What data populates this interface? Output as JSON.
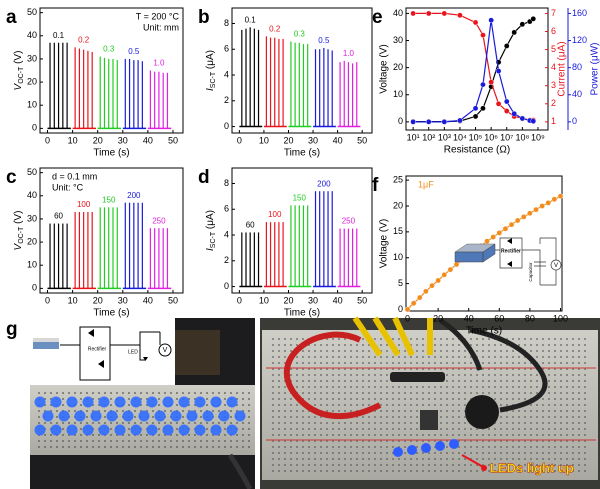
{
  "chart_data": [
    {
      "panel": "a",
      "type": "pulse",
      "ylabel": [
        "V",
        "OC-T",
        " (V)"
      ],
      "xlabel": "Time (s)",
      "xlim": [
        -3,
        54
      ],
      "ylim": [
        -2,
        52
      ],
      "xticks": [
        0,
        10,
        20,
        30,
        40,
        50
      ],
      "yticks": [
        0,
        10,
        20,
        30,
        40,
        50
      ],
      "annotations": [
        "T = 200 °C",
        "Unit: mm"
      ],
      "annotation_corner": "upper right",
      "series": [
        {
          "name": "0.1",
          "color": "#000000",
          "x": [
            1,
            2.7,
            4.4,
            6.1,
            7.8
          ],
          "values": [
            37,
            37,
            37,
            37,
            37
          ]
        },
        {
          "name": "0.2",
          "color": "#e8141c",
          "x": [
            11,
            12.7,
            14.4,
            16.1,
            17.8
          ],
          "values": [
            35,
            34.5,
            34,
            33.5,
            33
          ]
        },
        {
          "name": "0.3",
          "color": "#22cc22",
          "x": [
            21,
            22.7,
            24.4,
            26.1,
            27.8
          ],
          "values": [
            31,
            30.5,
            30,
            30,
            29.5
          ]
        },
        {
          "name": "0.5",
          "color": "#1a1adb",
          "x": [
            31,
            32.7,
            34.4,
            36.1,
            37.8
          ],
          "values": [
            30,
            30,
            29.5,
            29.5,
            29
          ]
        },
        {
          "name": "1.0",
          "color": "#e020e0",
          "x": [
            41,
            42.7,
            44.4,
            46.1,
            47.8
          ],
          "values": [
            25,
            24.5,
            24.5,
            24,
            24
          ]
        }
      ]
    },
    {
      "panel": "b",
      "type": "pulse",
      "ylabel": [
        "I",
        "SC-T",
        " (μA)"
      ],
      "xlabel": "Time (s)",
      "xlim": [
        -3,
        54
      ],
      "ylim": [
        -0.5,
        9.2
      ],
      "xticks": [
        0,
        10,
        20,
        30,
        40,
        50
      ],
      "yticks": [
        0,
        2,
        4,
        6,
        8
      ],
      "series": [
        {
          "name": "0.1",
          "color": "#000000",
          "x": [
            1,
            2.7,
            4.4,
            6.1,
            7.8
          ],
          "values": [
            7.5,
            7.6,
            7.7,
            7.6,
            7.5
          ]
        },
        {
          "name": "0.2",
          "color": "#e8141c",
          "x": [
            11,
            12.7,
            14.4,
            16.1,
            17.8
          ],
          "values": [
            7,
            6.9,
            6.9,
            6.8,
            6.8
          ]
        },
        {
          "name": "0.3",
          "color": "#22cc22",
          "x": [
            21,
            22.7,
            24.4,
            26.1,
            27.8
          ],
          "values": [
            6.6,
            6.5,
            6.5,
            6.4,
            6.4
          ]
        },
        {
          "name": "0.5",
          "color": "#1a1adb",
          "x": [
            31,
            32.7,
            34.4,
            36.1,
            37.8
          ],
          "values": [
            6,
            6,
            6.1,
            6,
            5.9
          ]
        },
        {
          "name": "1.0",
          "color": "#e020e0",
          "x": [
            41,
            42.7,
            44.4,
            46.1,
            47.8
          ],
          "values": [
            5,
            5.1,
            5,
            4.9,
            5
          ]
        }
      ]
    },
    {
      "panel": "c",
      "type": "pulse",
      "ylabel": [
        "V",
        "OC-T",
        " (V)"
      ],
      "xlabel": "Time (s)",
      "xlim": [
        -3,
        54
      ],
      "ylim": [
        -2,
        52
      ],
      "xticks": [
        0,
        10,
        20,
        30,
        40,
        50
      ],
      "yticks": [
        0,
        10,
        20,
        30,
        40,
        50
      ],
      "annotations": [
        "d = 0.1 mm",
        "Unit: °C"
      ],
      "annotation_corner": "upper left",
      "series": [
        {
          "name": "60",
          "color": "#000000",
          "x": [
            1,
            2.7,
            4.4,
            6.1,
            7.8
          ],
          "values": [
            28,
            28,
            28,
            28,
            28
          ]
        },
        {
          "name": "100",
          "color": "#e8141c",
          "x": [
            11,
            12.7,
            14.4,
            16.1,
            17.8
          ],
          "values": [
            33,
            33,
            33,
            33,
            33
          ]
        },
        {
          "name": "150",
          "color": "#22cc22",
          "x": [
            21,
            22.7,
            24.4,
            26.1,
            27.8
          ],
          "values": [
            35,
            35,
            35,
            35,
            35
          ]
        },
        {
          "name": "200",
          "color": "#1a1adb",
          "x": [
            31,
            32.7,
            34.4,
            36.1,
            37.8
          ],
          "values": [
            37,
            37,
            37,
            37,
            37
          ]
        },
        {
          "name": "250",
          "color": "#e020e0",
          "x": [
            41,
            42.7,
            44.4,
            46.1,
            47.8
          ],
          "values": [
            26,
            26,
            26,
            26,
            26
          ]
        }
      ]
    },
    {
      "panel": "d",
      "type": "pulse",
      "ylabel": [
        "I",
        "SC-T",
        " (μA)"
      ],
      "xlabel": "Time (s)",
      "xlim": [
        -3,
        54
      ],
      "ylim": [
        -0.5,
        9.2
      ],
      "xticks": [
        0,
        10,
        20,
        30,
        40,
        50
      ],
      "yticks": [
        0,
        2,
        4,
        6,
        8
      ],
      "series": [
        {
          "name": "60",
          "color": "#000000",
          "x": [
            1,
            2.7,
            4.4,
            6.1,
            7.8
          ],
          "values": [
            4.2,
            4.2,
            4.2,
            4.2,
            4.2
          ]
        },
        {
          "name": "100",
          "color": "#e8141c",
          "x": [
            11,
            12.7,
            14.4,
            16.1,
            17.8
          ],
          "values": [
            5,
            5,
            5,
            5,
            5
          ]
        },
        {
          "name": "150",
          "color": "#22cc22",
          "x": [
            21,
            22.7,
            24.4,
            26.1,
            27.8
          ],
          "values": [
            6.3,
            6.3,
            6.3,
            6.3,
            6.3
          ]
        },
        {
          "name": "200",
          "color": "#1a1adb",
          "x": [
            31,
            32.7,
            34.4,
            36.1,
            37.8
          ],
          "values": [
            7.4,
            7.4,
            7.4,
            7.4,
            7.4
          ]
        },
        {
          "name": "250",
          "color": "#e020e0",
          "x": [
            41,
            42.7,
            44.4,
            46.1,
            47.8
          ],
          "values": [
            4.5,
            4.5,
            4.5,
            4.5,
            4.5
          ]
        }
      ]
    },
    {
      "panel": "e",
      "type": "line",
      "xscale": "log",
      "ylabel": "Voltage (V)",
      "y2label": "Current (μA)",
      "y3label": "Power (μW)",
      "xlabel": "Resistance (Ω)",
      "xlim": [
        3.5,
        4400000000
      ],
      "ylim": [
        -3,
        42
      ],
      "y2lim": [
        0.55,
        7.3
      ],
      "y3lim": [
        -12,
        168
      ],
      "xticks": [
        {
          "value": 10,
          "label": "10¹"
        },
        {
          "value": 100,
          "label": "10²"
        },
        {
          "value": 1000,
          "label": "10³"
        },
        {
          "value": 10000,
          "label": "10⁴"
        },
        {
          "value": 100000,
          "label": "10⁵"
        },
        {
          "value": 1000000,
          "label": "10⁶"
        },
        {
          "value": 10000000,
          "label": "10⁷"
        },
        {
          "value": 100000000,
          "label": "10⁸"
        },
        {
          "value": 1000000000,
          "label": "10⁹"
        }
      ],
      "yticks": [
        0,
        10,
        20,
        30,
        40
      ],
      "y2ticks": [
        1,
        2,
        3,
        4,
        5,
        6,
        7
      ],
      "y3ticks": [
        0,
        40,
        80,
        120,
        160
      ],
      "x": [
        10,
        100,
        1000,
        10000,
        100000,
        300000,
        1000000,
        3000000,
        10000000,
        30000000,
        100000000,
        300000000,
        500000000
      ],
      "series": [
        {
          "name": "Voltage",
          "color": "#000000",
          "axis": "y",
          "values": [
            0.1,
            0.1,
            0.1,
            0.3,
            2,
            5,
            13,
            22,
            28,
            33,
            36,
            37,
            38
          ]
        },
        {
          "name": "Current",
          "color": "#e8141c",
          "axis": "y2",
          "values": [
            7,
            7,
            7,
            6.9,
            6.5,
            5.8,
            3.2,
            2,
            1.6,
            1.3,
            1.2,
            1.1,
            1.1
          ]
        },
        {
          "name": "Power",
          "color": "#1a1adb",
          "axis": "y3",
          "values": [
            0,
            0,
            0,
            2,
            20,
            55,
            150,
            75,
            30,
            12,
            5,
            2,
            1
          ]
        }
      ]
    },
    {
      "panel": "f",
      "type": "line",
      "ylabel": "Voltage (V)",
      "xlabel": "Time (s)",
      "xlim": [
        -1,
        101
      ],
      "ylim": [
        -0.3,
        25.8
      ],
      "xticks": [
        0,
        20,
        40,
        60,
        80,
        100
      ],
      "yticks": [
        0,
        5,
        10,
        15,
        20,
        25
      ],
      "annotations": [
        "1μF"
      ],
      "annotation_corner": "upper left",
      "inset": {
        "rectifier": "Rectifier",
        "capacitor": "Capacitor",
        "meter": "V"
      },
      "x": [
        0,
        4,
        8,
        12,
        16,
        20,
        24,
        28,
        32,
        36,
        40,
        44,
        48,
        52,
        56,
        60,
        64,
        68,
        72,
        76,
        80,
        84,
        88,
        92,
        96,
        100
      ],
      "series": [
        {
          "name": "Voltage",
          "color": "#f28c1e",
          "values": [
            0,
            1.2,
            2.3,
            3.5,
            4.6,
            5.6,
            6.7,
            7.7,
            8.7,
            9.6,
            10.5,
            11.4,
            12.3,
            13.2,
            14,
            14.8,
            15.6,
            16.4,
            17.2,
            17.9,
            18.6,
            19.3,
            20,
            20.6,
            21.3,
            21.9
          ]
        }
      ]
    }
  ],
  "photo_panel": {
    "label": "g",
    "caption": "LEDs light up",
    "inset": {
      "rectifier": "Rectifier",
      "led": "LED",
      "meter": "V"
    }
  }
}
